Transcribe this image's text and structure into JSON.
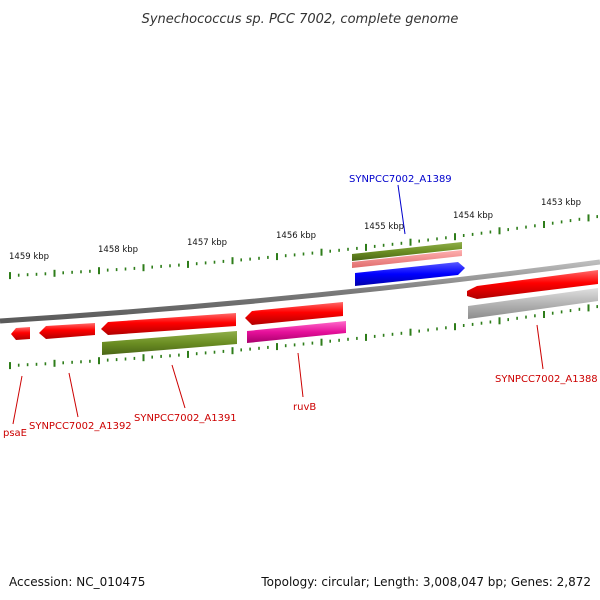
{
  "title": "Synechococcus sp. PCC 7002, complete genome",
  "footer": {
    "accession": "Accession: NC_010475",
    "summary": "Topology: circular; Length: 3,008,047 bp; Genes: 2,872"
  },
  "ticks": [
    "1459 kbp",
    "1458 kbp",
    "1457 kbp",
    "1456 kbp",
    "1455 kbp",
    "1454 kbp",
    "1453 kbp"
  ],
  "genes": [
    {
      "label": "SYNPCC7002_A1389",
      "color": "#0000cc"
    },
    {
      "label": "SYNPCC7002_A1388",
      "color": "#cc0000"
    },
    {
      "label": "ruvB",
      "color": "#cc0000"
    },
    {
      "label": "SYNPCC7002_A1391",
      "color": "#cc0000"
    },
    {
      "label": "SYNPCC7002_A1392",
      "color": "#cc0000"
    },
    {
      "label": "psaE",
      "color": "#cc0000"
    }
  ],
  "colors": {
    "backbone": "#8a8a8a",
    "tick": "#2e7d1a",
    "gene_red": "#ff0000",
    "gene_olive": "#6b8e23",
    "gene_pink": "#f08080",
    "gene_blue": "#0000ff",
    "gene_magenta": "#e6109a",
    "gene_gray": "#b0b0b0"
  }
}
